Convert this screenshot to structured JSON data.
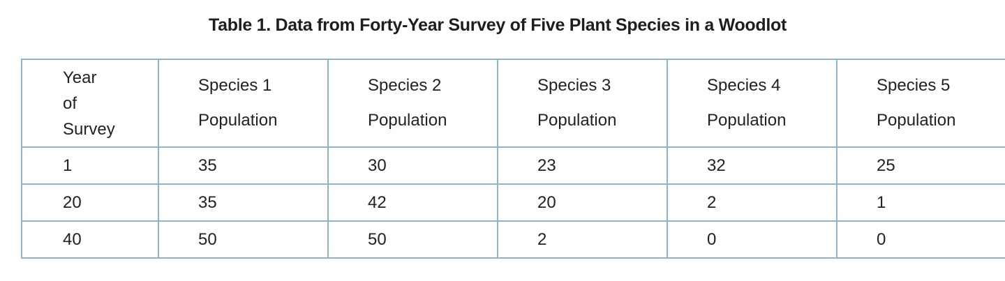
{
  "table": {
    "caption": "Table 1. Data from Forty-Year Survey of Five Plant Species in a Woodlot",
    "header": {
      "year": [
        "Year",
        "of",
        "Survey"
      ],
      "species": [
        {
          "name": "Species 1",
          "unit": "Population"
        },
        {
          "name": "Species 2",
          "unit": "Population"
        },
        {
          "name": "Species 3",
          "unit": "Population"
        },
        {
          "name": "Species 4",
          "unit": "Population"
        },
        {
          "name": "Species 5",
          "unit": "Population"
        }
      ]
    },
    "rows": [
      {
        "year": "1",
        "values": [
          "35",
          "30",
          "23",
          "32",
          "25"
        ]
      },
      {
        "year": "20",
        "values": [
          "35",
          "42",
          "20",
          "2",
          "1"
        ]
      },
      {
        "year": "40",
        "values": [
          "50",
          "50",
          "2",
          "0",
          "0"
        ]
      }
    ]
  },
  "chart_data": {
    "type": "table",
    "title": "Table 1. Data from Forty-Year Survey of Five Plant Species in a Woodlot",
    "columns": [
      "Year of Survey",
      "Species 1 Population",
      "Species 2 Population",
      "Species 3 Population",
      "Species 4 Population",
      "Species 5 Population"
    ],
    "x": [
      1,
      20,
      40
    ],
    "series": [
      {
        "name": "Species 1 Population",
        "values": [
          35,
          35,
          50
        ]
      },
      {
        "name": "Species 2 Population",
        "values": [
          30,
          42,
          50
        ]
      },
      {
        "name": "Species 3 Population",
        "values": [
          23,
          20,
          2
        ]
      },
      {
        "name": "Species 4 Population",
        "values": [
          32,
          2,
          0
        ]
      },
      {
        "name": "Species 5 Population",
        "values": [
          25,
          1,
          0
        ]
      }
    ]
  }
}
